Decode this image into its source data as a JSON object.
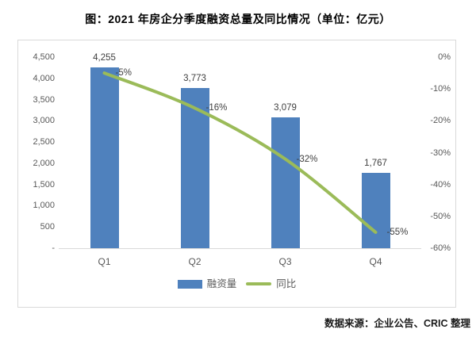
{
  "title": "图：2021 年房企分季度融资总量及同比情况（单位：亿元）",
  "source": "数据来源：企业公告、CRIC 整理",
  "colors": {
    "bar": "#4f81bd",
    "line": "#9bbb59",
    "frame_border": "#d9d9d9",
    "axis_line": "#d9d9d9",
    "tick_text": "#595959",
    "data_label_text": "#3f3f3f",
    "title_text": "#000000"
  },
  "chart_data": {
    "type": "bar",
    "subtype": "bar-line-combo",
    "title": "图：2021 年房企分季度融资总量及同比情况（单位：亿元）",
    "categories": [
      "Q1",
      "Q2",
      "Q3",
      "Q4"
    ],
    "series": [
      {
        "name": "融资量",
        "type": "bar",
        "axis": "left",
        "values": [
          4255,
          3773,
          3079,
          1767
        ],
        "labels": [
          "4,255",
          "3,773",
          "3,079",
          "1,767"
        ]
      },
      {
        "name": "同比",
        "type": "line",
        "axis": "right",
        "values": [
          -5,
          -16,
          -32,
          -55
        ],
        "labels": [
          "-5%",
          "-16%",
          "-32%",
          "-55%"
        ]
      }
    ],
    "left_axis": {
      "min": 0,
      "max": 4500,
      "step": 500,
      "tick_labels": [
        "4,500",
        "4,000",
        "3,500",
        "3,000",
        "2,500",
        "2,000",
        "1,500",
        "1,000",
        "500",
        "-"
      ]
    },
    "right_axis": {
      "min": -60,
      "max": 0,
      "step": -10,
      "tick_labels": [
        "0%",
        "-10%",
        "-20%",
        "-30%",
        "-40%",
        "-50%",
        "-60%"
      ]
    },
    "grid": false,
    "legend_position": "bottom-center",
    "legend": [
      {
        "label": "融资量",
        "swatch": "bar"
      },
      {
        "label": "同比",
        "swatch": "line"
      }
    ]
  }
}
